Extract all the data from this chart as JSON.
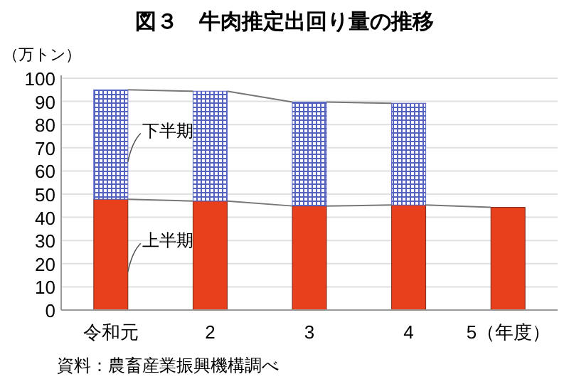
{
  "chart_data": {
    "type": "bar",
    "title": "図３　牛肉推定出回り量の推移",
    "ylabel": "（万トン）",
    "stacked": true,
    "legend": false,
    "grid": "y",
    "categories": [
      "令和元",
      "2",
      "3",
      "4",
      "5（年度）"
    ],
    "series": [
      {
        "name": "上半期",
        "color": "#e8401c",
        "values": [
          47.8,
          47.0,
          44.9,
          45.3,
          44.3
        ]
      },
      {
        "name": "下半期",
        "color": "#5563c0",
        "values": [
          47.2,
          47.4,
          44.8,
          43.9,
          null
        ]
      }
    ],
    "ylim": [
      0,
      100
    ],
    "yticks": [
      0,
      10,
      20,
      30,
      40,
      50,
      60,
      70,
      80,
      90,
      100
    ],
    "annotations": [
      "資料：農畜産業振興機構調べ"
    ]
  }
}
